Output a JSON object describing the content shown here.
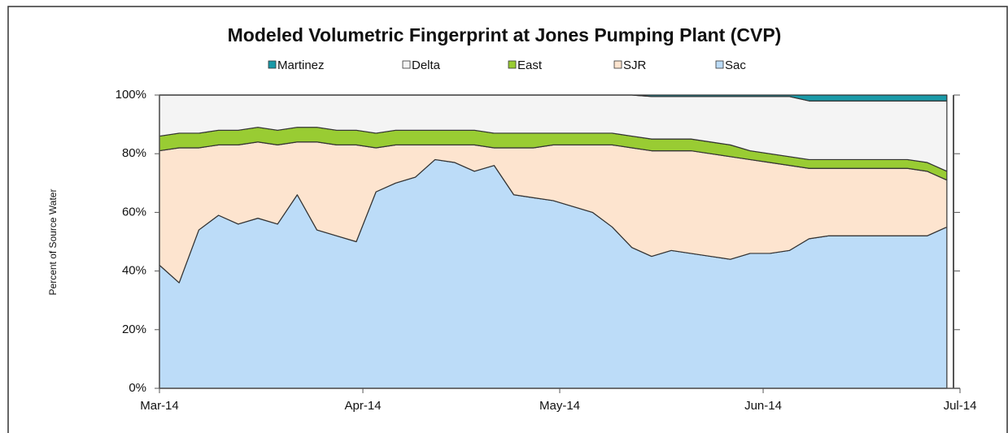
{
  "chart_data": {
    "type": "stacked-area",
    "title": "Modeled Volumetric Fingerprint at Jones Pumping Plant (CVP)",
    "y_label": "Percent of Source Water",
    "x": [
      0,
      3,
      6,
      9,
      12,
      15,
      18,
      21,
      24,
      27,
      30,
      33,
      36,
      39,
      42,
      45,
      48,
      51,
      54,
      57,
      60,
      63,
      66,
      69,
      72,
      75,
      78,
      81,
      84,
      87,
      90,
      93,
      96,
      99,
      102,
      105,
      108,
      111,
      114,
      117,
      120
    ],
    "xlim": [
      0,
      122
    ],
    "xticks": [
      {
        "value": 0,
        "label": "Mar-14"
      },
      {
        "value": 31,
        "label": "Apr-14"
      },
      {
        "value": 61,
        "label": "May-14"
      },
      {
        "value": 92,
        "label": "Jun-14"
      },
      {
        "value": 122,
        "label": "Jul-14"
      }
    ],
    "ylim": [
      0,
      100
    ],
    "yticks": [
      {
        "value": 0,
        "label": "0%"
      },
      {
        "value": 20,
        "label": "20%"
      },
      {
        "value": 40,
        "label": "40%"
      },
      {
        "value": 60,
        "label": "60%"
      },
      {
        "value": 80,
        "label": "80%"
      },
      {
        "value": 100,
        "label": "100%"
      }
    ],
    "series": [
      {
        "name": "Sac",
        "color": "#bcdcf8",
        "values": [
          42,
          36,
          54,
          59,
          56,
          58,
          56,
          66,
          54,
          52,
          50,
          67,
          70,
          72,
          78,
          77,
          74,
          76,
          66,
          65,
          64,
          62,
          60,
          55,
          48,
          45,
          47,
          46,
          45,
          44,
          46,
          46,
          47,
          51,
          52,
          52,
          52,
          52,
          52,
          52,
          55
        ]
      },
      {
        "name": "SJR",
        "color": "#fde4cf",
        "values": [
          39,
          46,
          28,
          24,
          27,
          26,
          27,
          18,
          30,
          31,
          33,
          15,
          13,
          11,
          5,
          6,
          9,
          6,
          16,
          17,
          19,
          21,
          23,
          28,
          34,
          36,
          34,
          35,
          35,
          35,
          32,
          31,
          29,
          24,
          23,
          23,
          23,
          23,
          23,
          22,
          16
        ]
      },
      {
        "name": "East",
        "color": "#99cc33",
        "values": [
          5,
          5,
          5,
          5,
          5,
          5,
          5,
          5,
          5,
          5,
          5,
          5,
          5,
          5,
          5,
          5,
          5,
          5,
          5,
          5,
          4,
          4,
          4,
          4,
          4,
          4,
          4,
          4,
          4,
          4,
          3,
          3,
          3,
          3,
          3,
          3,
          3,
          3,
          3,
          3,
          3
        ]
      },
      {
        "name": "Delta",
        "color": "#f4f4f4",
        "values": [
          14,
          13,
          13,
          12,
          12,
          11,
          12,
          11,
          11,
          12,
          12,
          13,
          12,
          12,
          12,
          12,
          12,
          13,
          13,
          13,
          13,
          13,
          13,
          13,
          14,
          14.5,
          14.5,
          14.5,
          15.5,
          16.5,
          18.5,
          19.5,
          20.5,
          20,
          20,
          20,
          20,
          20,
          20,
          21,
          24
        ]
      },
      {
        "name": "Martinez",
        "color": "#1a9aa8",
        "values": [
          0,
          0,
          0,
          0,
          0,
          0,
          0,
          0,
          0,
          0,
          0,
          0,
          0,
          0,
          0,
          0,
          0,
          0,
          0,
          0,
          0,
          0,
          0,
          0,
          0,
          0.5,
          0.5,
          0.5,
          0.5,
          0.5,
          0.5,
          0.5,
          0.5,
          2,
          2,
          2,
          2,
          2,
          2,
          2,
          2
        ]
      }
    ]
  }
}
